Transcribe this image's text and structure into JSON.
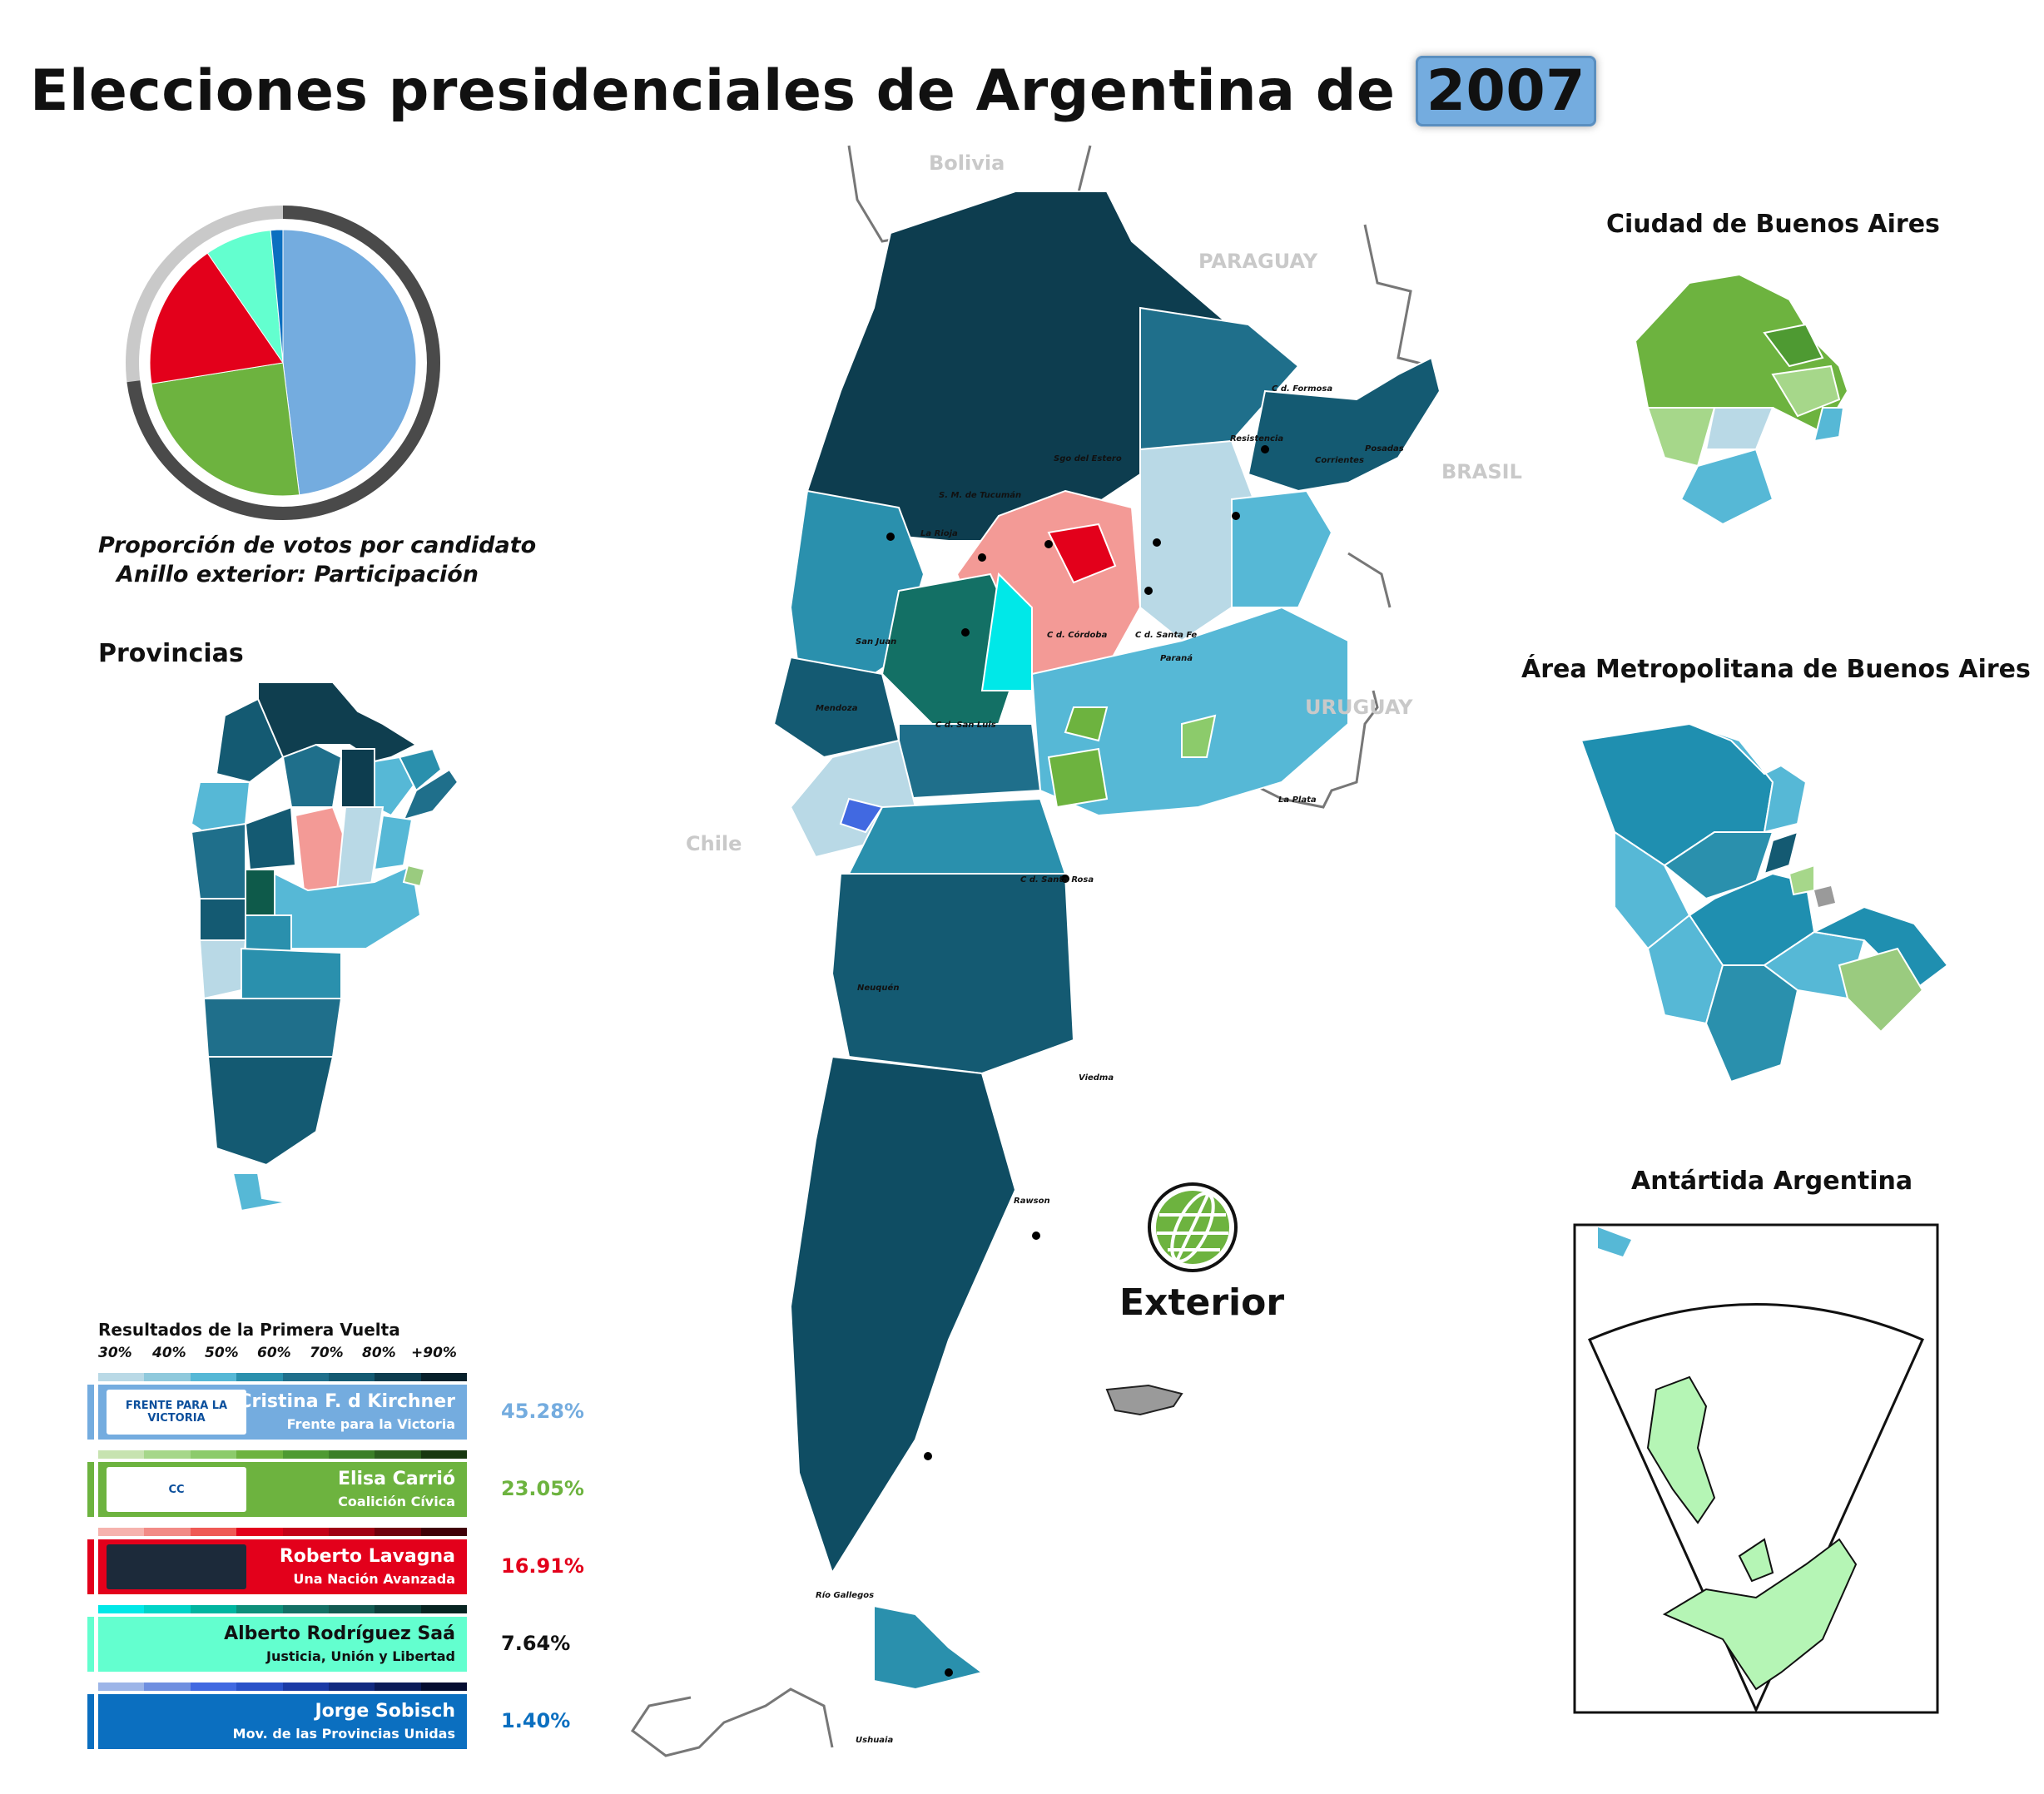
{
  "title": {
    "text": "Elecciones presidenciales de Argentina de",
    "year": "2007"
  },
  "pie": {
    "caption_line1": "Proporción de votos por candidato",
    "caption_line2": "Anillo exterior: Participación",
    "turnout_share": 0.73,
    "slices": [
      {
        "candidate": "Cristina F. d Kirchner",
        "share": 45.28,
        "color": "#74acdf"
      },
      {
        "candidate": "Elisa Carrió",
        "share": 23.05,
        "color": "#6db33f"
      },
      {
        "candidate": "Roberto Lavagna",
        "share": 16.91,
        "color": "#e3001b"
      },
      {
        "candidate": "Alberto Rodríguez Saá",
        "share": 7.64,
        "color": "#63ffcf"
      },
      {
        "candidate": "Jorge Sobisch",
        "share": 1.4,
        "color": "#0b6fc0"
      }
    ]
  },
  "labels": {
    "provincias": "Provincias",
    "caba": "Ciudad de Buenos Aires",
    "amba": "Área Metropolitana de Buenos Aires",
    "antartida": "Antártida Argentina",
    "exterior": "Exterior"
  },
  "countries": [
    "Bolivia",
    "PARAGUAY",
    "BRASIL",
    "URUGUAY",
    "Chile"
  ],
  "cities": [
    "C d. Formosa",
    "Resistencia",
    "Corrientes",
    "Posadas",
    "Sgo del Estero",
    "S. M. de Tucumán",
    "La Rioja",
    "San Juan",
    "C d. Córdoba",
    "C d. Santa Fe",
    "Paraná",
    "Mendoza",
    "C d. San Luis",
    "La Plata",
    "C d. Santa Rosa",
    "Neuquén",
    "Viedma",
    "Rawson",
    "Río Gallegos",
    "Ushuaia"
  ],
  "legend": {
    "title": "Resultados de la Primera Vuelta",
    "ticks": [
      "30%",
      "40%",
      "50%",
      "60%",
      "70%",
      "80%",
      "+90%"
    ],
    "candidates": [
      {
        "name": "Cristina F. d Kirchner",
        "party": "Frente para la Victoria",
        "percent": "45.28%",
        "color": "#74acdf",
        "logo": "FRENTE PARA LA VICTORIA",
        "scale": [
          "#b9d9e6",
          "#8fc9dc",
          "#56b8d6",
          "#2a90ad",
          "#1f6f8b",
          "#145a72",
          "#0d3d4f",
          "#07202b"
        ]
      },
      {
        "name": "Elisa Carrió",
        "party": "Coalición Cívica",
        "percent": "23.05%",
        "color": "#6db33f",
        "logo": "CC",
        "scale": [
          "#c7e3b0",
          "#a6d78a",
          "#8ccb6b",
          "#6db33f",
          "#4e9a32",
          "#3b7f27",
          "#2a5e1c",
          "#183810"
        ]
      },
      {
        "name": "Roberto Lavagna",
        "party": "Una Nación Avanzada",
        "percent": "16.91%",
        "color": "#e3001b",
        "logo": "",
        "scale": [
          "#f6b3ae",
          "#f28b86",
          "#ef5a55",
          "#e3001b",
          "#c40018",
          "#a00014",
          "#70000e",
          "#400008"
        ]
      },
      {
        "name": "Alberto Rodríguez Saá",
        "party": "Justicia, Unión y Libertad",
        "percent": "7.64%",
        "color": "#63ffcf",
        "logo": "",
        "scale": [
          "#00e8e8",
          "#00d4c8",
          "#00b5a0",
          "#0e8f7a",
          "#137065",
          "#135b52",
          "#0d3f3a",
          "#072421"
        ]
      },
      {
        "name": "Jorge Sobisch",
        "party": "Mov. de las Provincias Unidas",
        "percent": "1.40%",
        "color": "#0b6fc0",
        "logo": "",
        "scale": [
          "#9db5e8",
          "#6f8fe0",
          "#4169e1",
          "#2a52c9",
          "#1b3aa5",
          "#122a80",
          "#0b1b58",
          "#050d30"
        ]
      }
    ]
  }
}
